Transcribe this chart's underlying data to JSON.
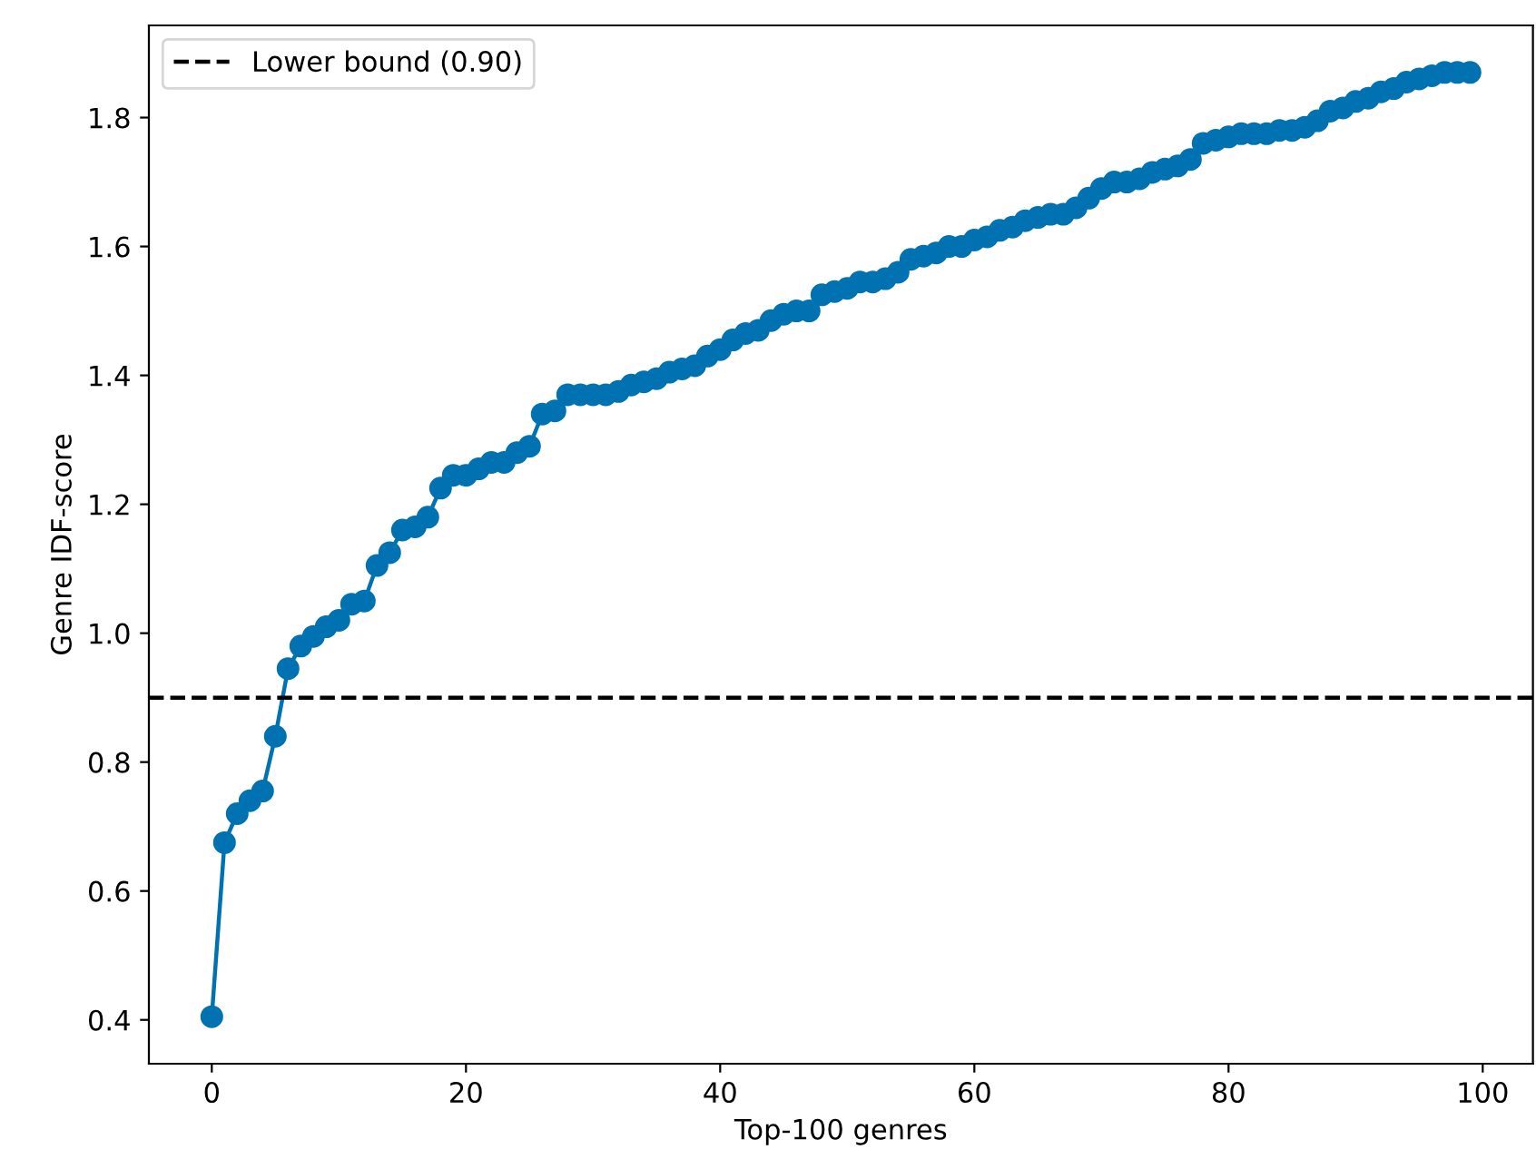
{
  "chart_data": {
    "type": "line",
    "xlabel": "Top-100 genres",
    "ylabel": "Genre IDF-score",
    "x": [
      0,
      1,
      2,
      3,
      4,
      5,
      6,
      7,
      8,
      9,
      10,
      11,
      12,
      13,
      14,
      15,
      16,
      17,
      18,
      19,
      20,
      21,
      22,
      23,
      24,
      25,
      26,
      27,
      28,
      29,
      30,
      31,
      32,
      33,
      34,
      35,
      36,
      37,
      38,
      39,
      40,
      41,
      42,
      43,
      44,
      45,
      46,
      47,
      48,
      49,
      50,
      51,
      52,
      53,
      54,
      55,
      56,
      57,
      58,
      59,
      60,
      61,
      62,
      63,
      64,
      65,
      66,
      67,
      68,
      69,
      70,
      71,
      72,
      73,
      74,
      75,
      76,
      77,
      78,
      79,
      80,
      81,
      82,
      83,
      84,
      85,
      86,
      87,
      88,
      89,
      90,
      91,
      92,
      93,
      94,
      95,
      96,
      97,
      98,
      99
    ],
    "series": [
      {
        "color": "#0072b2",
        "values": [
          0.405,
          0.675,
          0.72,
          0.74,
          0.755,
          0.84,
          0.945,
          0.98,
          0.995,
          1.01,
          1.02,
          1.045,
          1.05,
          1.105,
          1.125,
          1.16,
          1.165,
          1.18,
          1.225,
          1.245,
          1.245,
          1.255,
          1.265,
          1.265,
          1.28,
          1.29,
          1.34,
          1.345,
          1.37,
          1.37,
          1.37,
          1.37,
          1.375,
          1.385,
          1.39,
          1.395,
          1.405,
          1.41,
          1.415,
          1.43,
          1.44,
          1.455,
          1.465,
          1.47,
          1.485,
          1.495,
          1.5,
          1.5,
          1.525,
          1.53,
          1.535,
          1.545,
          1.545,
          1.55,
          1.56,
          1.58,
          1.585,
          1.59,
          1.6,
          1.6,
          1.61,
          1.615,
          1.625,
          1.63,
          1.64,
          1.645,
          1.65,
          1.65,
          1.66,
          1.675,
          1.69,
          1.7,
          1.7,
          1.705,
          1.715,
          1.72,
          1.725,
          1.735,
          1.76,
          1.765,
          1.77,
          1.775,
          1.775,
          1.775,
          1.78,
          1.78,
          1.785,
          1.795,
          1.81,
          1.815,
          1.825,
          1.83,
          1.84,
          1.845,
          1.855,
          1.86,
          1.865,
          1.87,
          1.87,
          1.87
        ]
      }
    ],
    "ref_lines": [
      {
        "axis": "y",
        "value": 0.9,
        "label": "Lower bound (0.90)",
        "color": "#000000",
        "line_style": "dashed"
      }
    ],
    "xlim": [
      -4.95,
      103.95
    ],
    "ylim": [
      0.332,
      1.943
    ],
    "xticks": [
      0,
      20,
      40,
      60,
      80,
      100
    ],
    "yticks": [
      {
        "value": 0.4,
        "label": "0.4"
      },
      {
        "value": 0.6,
        "label": "0.6"
      },
      {
        "value": 0.8,
        "label": "0.8"
      },
      {
        "value": 1.0,
        "label": "1.0"
      },
      {
        "value": 1.2,
        "label": "1.2"
      },
      {
        "value": 1.4,
        "label": "1.4"
      },
      {
        "value": 1.6,
        "label": "1.6"
      },
      {
        "value": 1.8,
        "label": "1.8"
      }
    ],
    "marker": "circle",
    "line_style": "solid",
    "grid": false,
    "legend": "top left"
  }
}
